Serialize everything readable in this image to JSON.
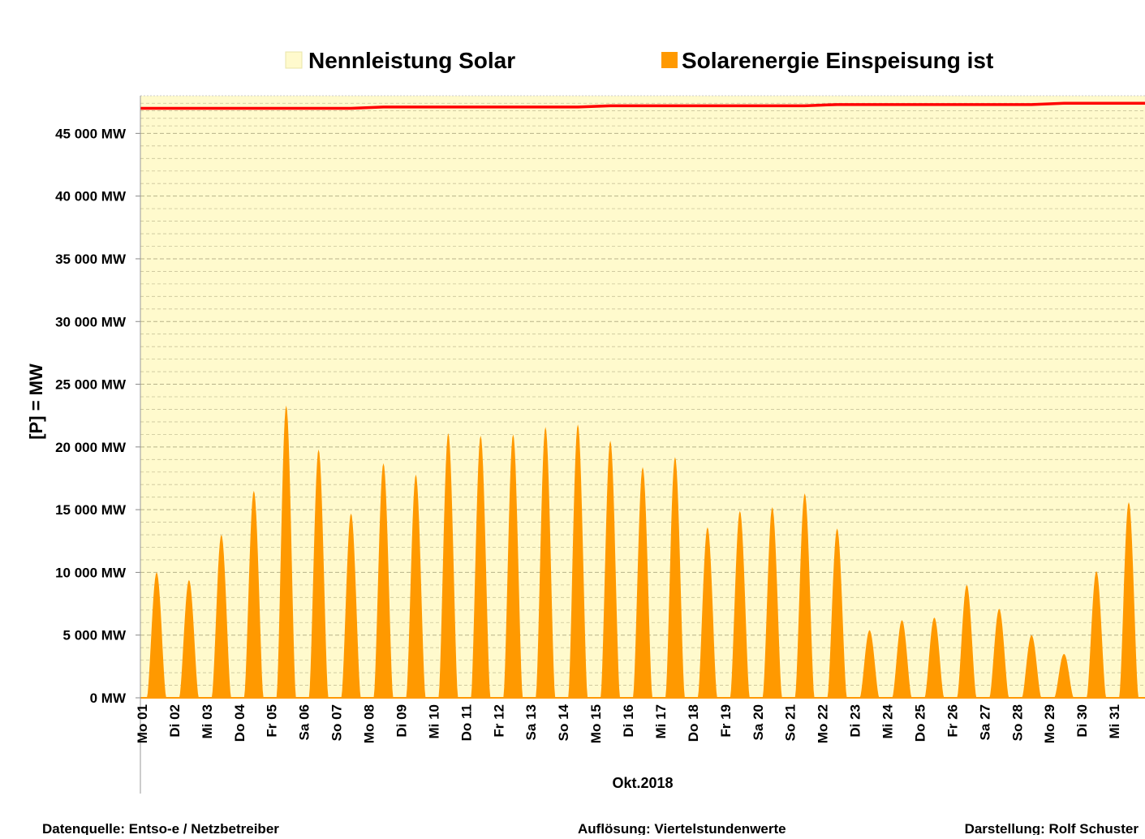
{
  "chart_data": {
    "type": "area",
    "legend": "top",
    "grid": true,
    "x_label": "Okt.2018",
    "y_label": "[P]  =  MW",
    "categories": [
      "Mo 01",
      "Di 02",
      "Mi 03",
      "Do 04",
      "Fr 05",
      "Sa 06",
      "So 07",
      "Mo 08",
      "Di 09",
      "Mi 10",
      "Do 11",
      "Fr 12",
      "Sa 13",
      "So 14",
      "Mo 15",
      "Di 16",
      "Mi 17",
      "Do 18",
      "Fr 19",
      "Sa 20",
      "So 21",
      "Mo 22",
      "Di 23",
      "Mi 24",
      "Do 25",
      "Fr 26",
      "Sa 27",
      "So 28",
      "Mo 29",
      "Di 30",
      "Mi 31"
    ],
    "ylim": [
      0,
      48000
    ],
    "yticks": [
      {
        "value": 0,
        "label": "0 MW"
      },
      {
        "value": 5000,
        "label": "5 000 MW"
      },
      {
        "value": 10000,
        "label": "10 000 MW"
      },
      {
        "value": 15000,
        "label": "15 000 MW"
      },
      {
        "value": 20000,
        "label": "20 000 MW"
      },
      {
        "value": 25000,
        "label": "25 000 MW"
      },
      {
        "value": 30000,
        "label": "30 000 MW"
      },
      {
        "value": 35000,
        "label": "35 000 MW"
      },
      {
        "value": 40000,
        "label": "40 000 MW"
      },
      {
        "value": 45000,
        "label": "45 000 MW"
      }
    ],
    "series": [
      {
        "name": "Nennleistung Solar",
        "color": "#fffacd",
        "line_color": "#ff0000",
        "values": [
          47000,
          47000,
          47000,
          47000,
          47000,
          47000,
          47000,
          47100,
          47100,
          47100,
          47100,
          47100,
          47100,
          47100,
          47200,
          47200,
          47200,
          47200,
          47200,
          47200,
          47200,
          47300,
          47300,
          47300,
          47300,
          47300,
          47300,
          47300,
          47400,
          47400,
          47400
        ]
      },
      {
        "name": "Solarenergie Einspeisung ist",
        "color": "#ff9900",
        "values": [
          10000,
          9400,
          13000,
          16500,
          23300,
          19800,
          14700,
          18700,
          17800,
          21100,
          20900,
          21000,
          21600,
          21800,
          20500,
          18400,
          19200,
          13600,
          14900,
          15200,
          16300,
          13500,
          5400,
          6200,
          6400,
          9000,
          7100,
          5000,
          3500,
          10100,
          15600
        ]
      }
    ],
    "footer": [
      "Datenquelle:  Entso-e  / Netzbetreiber",
      "Auflösung: Viertelstundenwerte",
      "Darstellung: Rolf Schuster"
    ]
  }
}
